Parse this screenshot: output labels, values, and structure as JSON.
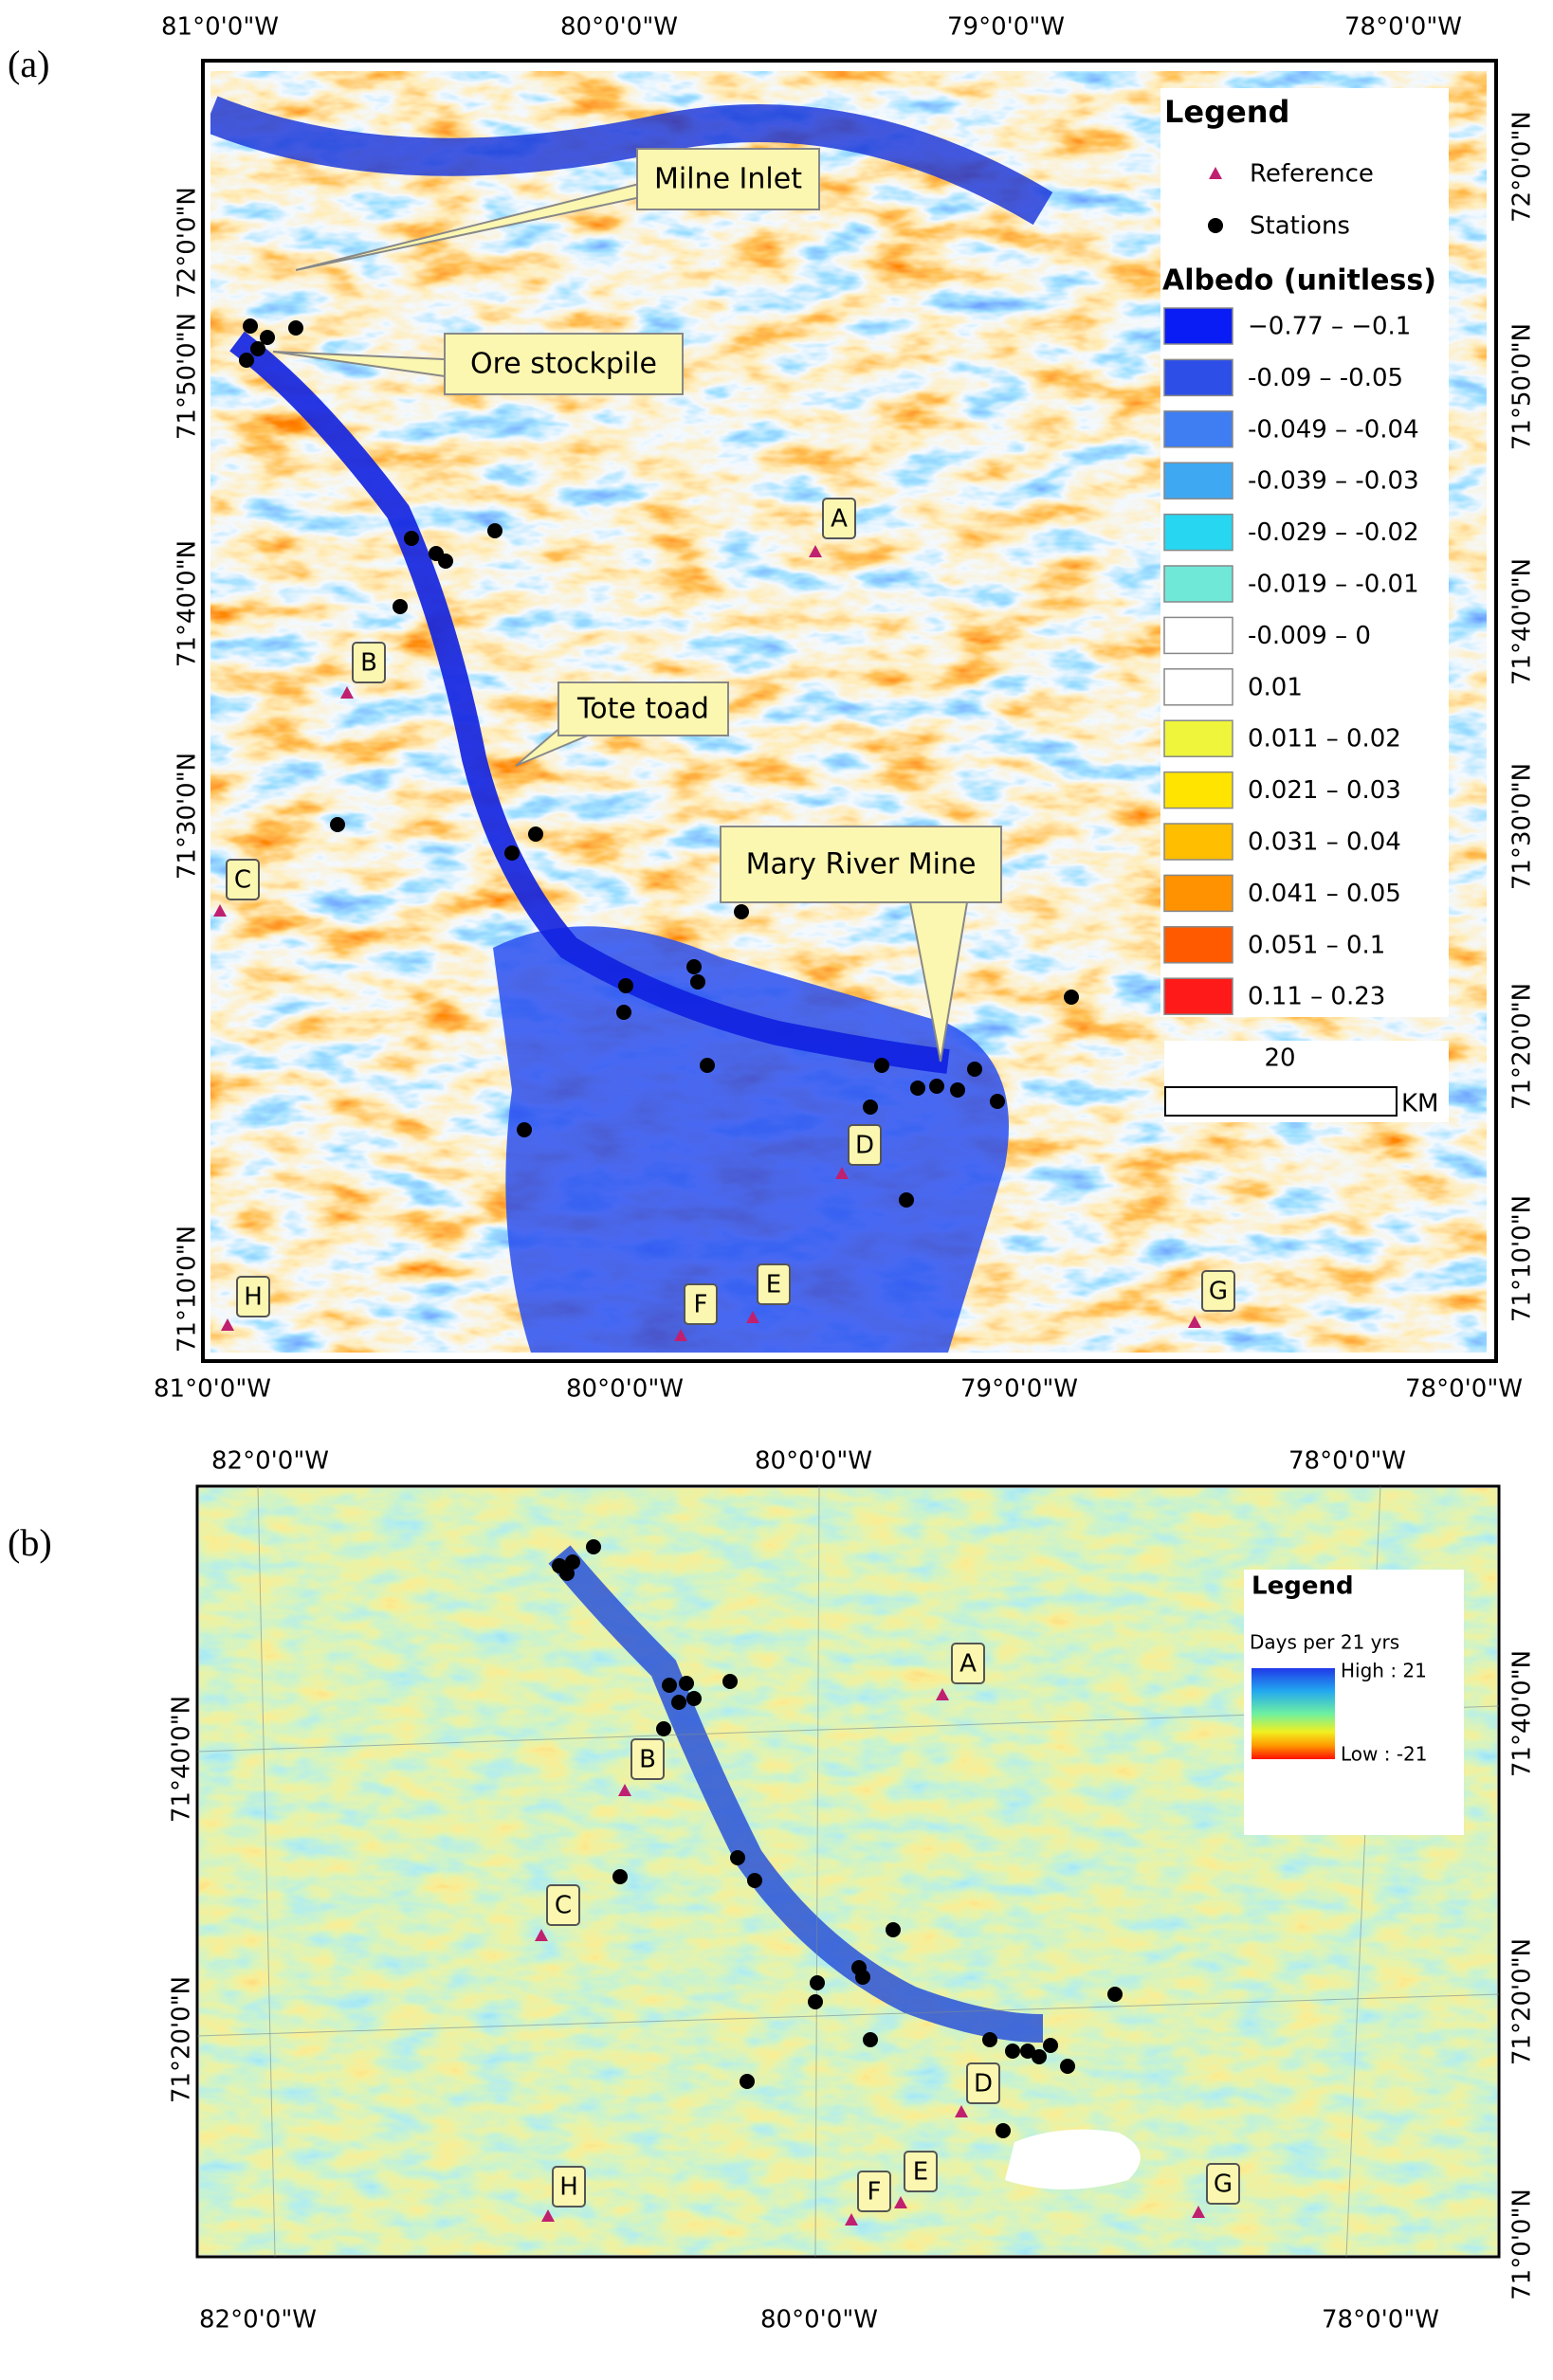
{
  "panels": [
    {
      "label": "(a)",
      "top_ticks": [
        "81°0'0\"W",
        "80°0'0\"W",
        "79°0'0\"W",
        "78°0'0\"W"
      ],
      "bottom_ticks": [
        "81°0'0\"W",
        "80°0'0\"W",
        "79°0'0\"W",
        "78°0'0\"W"
      ],
      "left_ticks": [
        "72°0'0\"N",
        "71°50'0\"N",
        "71°40'0\"N",
        "71°30'0\"N",
        "71°10'0\"N"
      ],
      "right_ticks": [
        "72°0'0\"N",
        "71°50'0\"N",
        "71°40'0\"N",
        "71°30'0\"N",
        "71°20'0\"N",
        "71°10'0\"N"
      ],
      "legend": {
        "title": "Legend",
        "items": [
          "Reference",
          "Stations"
        ],
        "ramp_title": "Albedo (unitless)",
        "classes": [
          "−0.77 – −0.1",
          "-0.09 – -0.05",
          "-0.049 – -0.04",
          "-0.039 – -0.03",
          "-0.029 – -0.02",
          "-0.019 – -0.01",
          "-0.009 – 0",
          "0.01",
          "0.011 – 0.02",
          "0.021 – 0.03",
          "0.031 – 0.04",
          "0.041 – 0.05",
          "0.051 – 0.1",
          "0.11 – 0.23"
        ],
        "class_colors": [
          "#0a1cf5",
          "#2d4fe8",
          "#3f7ef2",
          "#3fa8f2",
          "#27d6f0",
          "#6fe8d8",
          "#ffffff",
          "#ffffff",
          "#eef53a",
          "#ffe400",
          "#ffbe00",
          "#ff9200",
          "#ff5a00",
          "#ff1a1a"
        ],
        "scale_value": "20",
        "scale_unit": "KM"
      },
      "sites": [
        "A",
        "B",
        "C",
        "D",
        "E",
        "F",
        "G",
        "H"
      ],
      "callouts": [
        "Milne Inlet",
        "Ore stockpile",
        "Tote toad",
        "Mary River Mine"
      ]
    },
    {
      "label": "(b)",
      "top_ticks": [
        "82°0'0\"W",
        "80°0'0\"W",
        "78°0'0\"W"
      ],
      "bottom_ticks": [
        "82°0'0\"W",
        "80°0'0\"W",
        "78°0'0\"W"
      ],
      "left_ticks": [
        "71°40'0\"N",
        "71°20'0\"N"
      ],
      "right_ticks": [
        "71°40'0\"N",
        "71°20'0\"N",
        "71°0'0\"N"
      ],
      "legend": {
        "title": "Legend",
        "subtitle": "Days per 21 yrs",
        "high": "High : 21",
        "low": "Low : -21"
      },
      "sites": [
        "A",
        "B",
        "C",
        "D",
        "E",
        "F",
        "G",
        "H"
      ]
    }
  ]
}
